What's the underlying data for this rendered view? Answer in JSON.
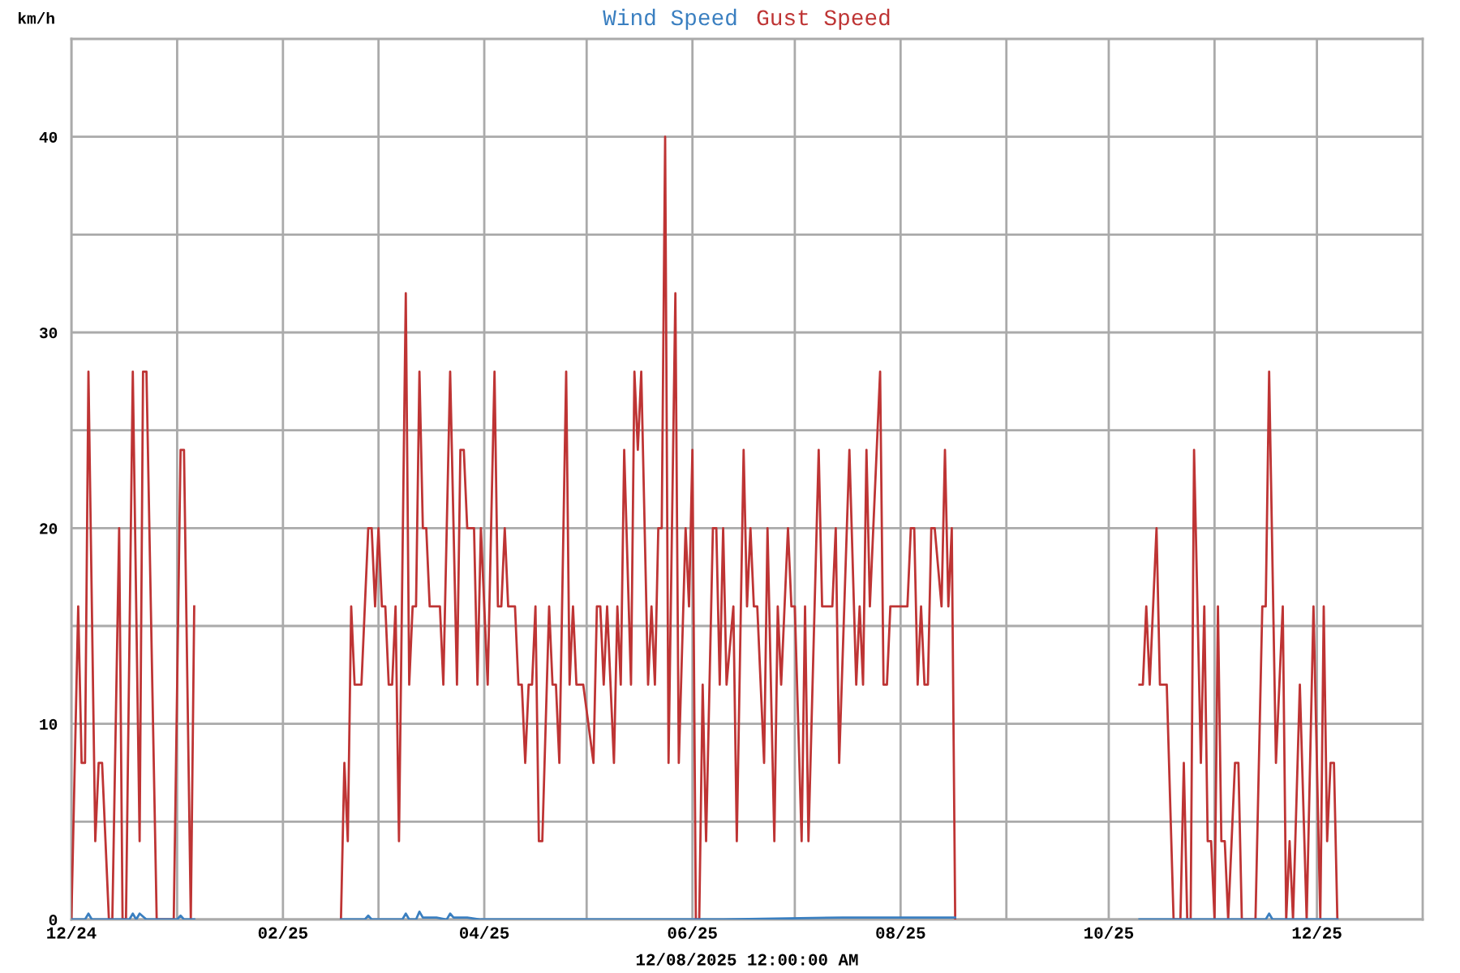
{
  "chart_data": {
    "type": "line",
    "xlabel": "12/08/2025 12:00:00 AM",
    "ylabel": "km/h",
    "xlim": [
      "2024-12-01",
      "2026-01-01"
    ],
    "xticks": [
      {
        "value": "2024-12-01",
        "label": "12/24"
      },
      {
        "value": "2025-01-01",
        "label": null
      },
      {
        "value": "2025-02-01",
        "label": "02/25"
      },
      {
        "value": "2025-03-01",
        "label": null
      },
      {
        "value": "2025-04-01",
        "label": "04/25"
      },
      {
        "value": "2025-05-01",
        "label": null
      },
      {
        "value": "2025-06-01",
        "label": "06/25"
      },
      {
        "value": "2025-07-01",
        "label": null
      },
      {
        "value": "2025-08-01",
        "label": "08/25"
      },
      {
        "value": "2025-09-01",
        "label": null
      },
      {
        "value": "2025-10-01",
        "label": "10/25"
      },
      {
        "value": "2025-11-01",
        "label": null
      },
      {
        "value": "2025-12-01",
        "label": "12/25"
      }
    ],
    "ylim": [
      0,
      45
    ],
    "yticks": [
      0,
      {
        "value": 5,
        "label": null
      },
      10,
      {
        "value": 15,
        "label": null
      },
      20,
      {
        "value": 25,
        "label": null
      },
      30,
      {
        "value": 35,
        "label": null
      },
      40
    ],
    "grid": true,
    "legend": "top",
    "series": [
      {
        "name": "Wind Speed",
        "color": "#3a7fc0",
        "x": [
          "2024-12-01",
          "2024-12-05",
          "2024-12-06",
          "2024-12-07",
          "2024-12-18",
          "2024-12-19",
          "2024-12-20",
          "2024-12-21",
          "2024-12-23",
          "2025-01-01",
          "2025-01-02",
          "2025-01-03",
          "2025-01-06",
          "2025-02-01",
          "2025-02-18",
          "2025-02-25",
          "2025-02-26",
          "2025-02-27",
          "2025-03-08",
          "2025-03-09",
          "2025-03-10",
          "2025-03-12",
          "2025-03-13",
          "2025-03-14",
          "2025-03-18",
          "2025-03-21",
          "2025-03-22",
          "2025-03-23",
          "2025-03-27",
          "2025-03-31",
          "2025-04-15",
          "2025-05-20",
          "2025-06-10",
          "2025-07-15",
          "2025-08-17",
          "2025-09-15",
          "2025-10-10",
          "2025-11-16",
          "2025-11-17",
          "2025-11-18",
          "2025-12-07"
        ],
        "values": [
          0,
          0,
          0.3,
          0,
          0,
          0.3,
          0,
          0.3,
          0,
          0,
          0.2,
          0,
          0,
          null,
          0,
          0,
          0.2,
          0,
          0,
          0.3,
          0,
          0,
          0.4,
          0.1,
          0.1,
          0,
          0.3,
          0.1,
          0.1,
          0,
          0,
          0,
          0,
          0.1,
          0.1,
          null,
          0,
          0,
          0.3,
          0,
          0
        ]
      },
      {
        "name": "Gust Speed",
        "color": "#be3434",
        "x": [
          "2024-12-01",
          "2024-12-03",
          "2024-12-04",
          "2024-12-05",
          "2024-12-06",
          "2024-12-08",
          "2024-12-09",
          "2024-12-10",
          "2024-12-12",
          "2024-12-13",
          "2024-12-15",
          "2024-12-16",
          "2024-12-17",
          "2024-12-19",
          "2024-12-21",
          "2024-12-22",
          "2024-12-23",
          "2024-12-26",
          "2024-12-31",
          "2025-01-02",
          "2025-01-03",
          "2025-01-05",
          "2025-01-06",
          "2025-02-01",
          "2025-02-18",
          "2025-02-19",
          "2025-02-20",
          "2025-02-21",
          "2025-02-22",
          "2025-02-24",
          "2025-02-26",
          "2025-02-27",
          "2025-02-28",
          "2025-03-01",
          "2025-03-02",
          "2025-03-03",
          "2025-03-04",
          "2025-03-05",
          "2025-03-06",
          "2025-03-07",
          "2025-03-09",
          "2025-03-10",
          "2025-03-11",
          "2025-03-12",
          "2025-03-13",
          "2025-03-14",
          "2025-03-15",
          "2025-03-16",
          "2025-03-19",
          "2025-03-20",
          "2025-03-22",
          "2025-03-24",
          "2025-03-25",
          "2025-03-26",
          "2025-03-27",
          "2025-03-29",
          "2025-03-30",
          "2025-03-31",
          "2025-04-02",
          "2025-04-04",
          "2025-04-05",
          "2025-04-06",
          "2025-04-07",
          "2025-04-08",
          "2025-04-10",
          "2025-04-11",
          "2025-04-12",
          "2025-04-13",
          "2025-04-14",
          "2025-04-15",
          "2025-04-16",
          "2025-04-17",
          "2025-04-18",
          "2025-04-20",
          "2025-04-21",
          "2025-04-22",
          "2025-04-23",
          "2025-04-25",
          "2025-04-26",
          "2025-04-27",
          "2025-04-28",
          "2025-04-30",
          "2025-05-03",
          "2025-05-04",
          "2025-05-05",
          "2025-05-06",
          "2025-05-07",
          "2025-05-09",
          "2025-05-10",
          "2025-05-11",
          "2025-05-12",
          "2025-05-14",
          "2025-05-15",
          "2025-05-16",
          "2025-05-17",
          "2025-05-19",
          "2025-05-20",
          "2025-05-21",
          "2025-05-22",
          "2025-05-23",
          "2025-05-24",
          "2025-05-25",
          "2025-05-27",
          "2025-05-28",
          "2025-05-30",
          "2025-05-31",
          "2025-06-01",
          "2025-06-02",
          "2025-06-03",
          "2025-06-04",
          "2025-06-05",
          "2025-06-07",
          "2025-06-08",
          "2025-06-09",
          "2025-06-10",
          "2025-06-11",
          "2025-06-13",
          "2025-06-14",
          "2025-06-16",
          "2025-06-17",
          "2025-06-18",
          "2025-06-19",
          "2025-06-20",
          "2025-06-22",
          "2025-06-23",
          "2025-06-25",
          "2025-06-26",
          "2025-06-27",
          "2025-06-29",
          "2025-06-30",
          "2025-07-01",
          "2025-07-03",
          "2025-07-04",
          "2025-07-05",
          "2025-07-08",
          "2025-07-09",
          "2025-07-12",
          "2025-07-13",
          "2025-07-14",
          "2025-07-17",
          "2025-07-19",
          "2025-07-20",
          "2025-07-21",
          "2025-07-22",
          "2025-07-23",
          "2025-07-26",
          "2025-07-27",
          "2025-07-28",
          "2025-07-29",
          "2025-08-03",
          "2025-08-04",
          "2025-08-05",
          "2025-08-06",
          "2025-08-07",
          "2025-08-08",
          "2025-08-09",
          "2025-08-10",
          "2025-08-11",
          "2025-08-13",
          "2025-08-14",
          "2025-08-15",
          "2025-08-16",
          "2025-08-17",
          "2025-09-15",
          "2025-10-10",
          "2025-10-11",
          "2025-10-12",
          "2025-10-13",
          "2025-10-15",
          "2025-10-16",
          "2025-10-18",
          "2025-10-20",
          "2025-10-22",
          "2025-10-23",
          "2025-10-24",
          "2025-10-25",
          "2025-10-26",
          "2025-10-28",
          "2025-10-29",
          "2025-10-30",
          "2025-10-31",
          "2025-11-01",
          "2025-11-02",
          "2025-11-03",
          "2025-11-04",
          "2025-11-05",
          "2025-11-07",
          "2025-11-08",
          "2025-11-09",
          "2025-11-13",
          "2025-11-15",
          "2025-11-16",
          "2025-11-17",
          "2025-11-19",
          "2025-11-21",
          "2025-11-22",
          "2025-11-23",
          "2025-11-24",
          "2025-11-26",
          "2025-11-28",
          "2025-11-30",
          "2025-12-02",
          "2025-12-03",
          "2025-12-04",
          "2025-12-05",
          "2025-12-06",
          "2025-12-07"
        ],
        "values": [
          0,
          16,
          8,
          8,
          28,
          4,
          8,
          8,
          0,
          0,
          20,
          0,
          0,
          28,
          4,
          28,
          28,
          0,
          0,
          24,
          24,
          0,
          16,
          null,
          0,
          8,
          4,
          16,
          12,
          12,
          20,
          20,
          16,
          20,
          16,
          16,
          12,
          12,
          16,
          4,
          32,
          12,
          16,
          16,
          28,
          20,
          20,
          16,
          16,
          12,
          28,
          12,
          24,
          24,
          20,
          20,
          12,
          20,
          12,
          28,
          16,
          16,
          20,
          16,
          16,
          12,
          12,
          8,
          12,
          12,
          16,
          4,
          4,
          16,
          12,
          12,
          8,
          28,
          12,
          16,
          12,
          12,
          8,
          16,
          16,
          12,
          16,
          8,
          16,
          12,
          24,
          12,
          28,
          24,
          28,
          12,
          16,
          12,
          20,
          20,
          40,
          8,
          32,
          8,
          20,
          16,
          24,
          0,
          0,
          12,
          4,
          20,
          20,
          12,
          20,
          12,
          16,
          4,
          24,
          16,
          20,
          16,
          16,
          8,
          20,
          4,
          16,
          12,
          20,
          16,
          16,
          4,
          16,
          4,
          24,
          16,
          16,
          20,
          8,
          24,
          12,
          16,
          12,
          24,
          16,
          28,
          12,
          12,
          16,
          16,
          20,
          20,
          12,
          16,
          12,
          12,
          20,
          20,
          16,
          24,
          16,
          20,
          0,
          null,
          12,
          12,
          16,
          12,
          20,
          12,
          12,
          0,
          0,
          8,
          0,
          0,
          24,
          8,
          16,
          4,
          4,
          0,
          16,
          4,
          4,
          0,
          8,
          8,
          0,
          0,
          16,
          16,
          28,
          8,
          16,
          0,
          4,
          0,
          12,
          0,
          16,
          0,
          16,
          4,
          8,
          8,
          0
        ]
      }
    ]
  }
}
